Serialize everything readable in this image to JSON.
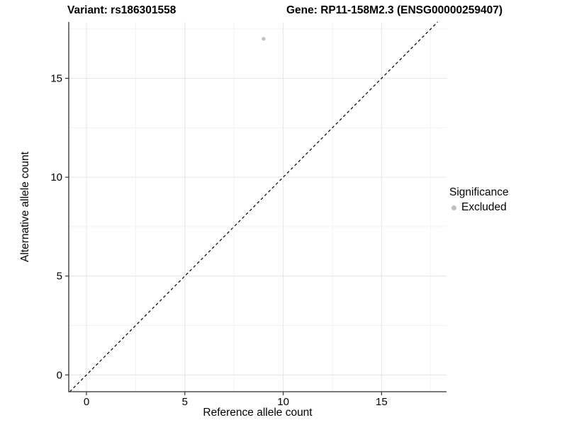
{
  "title": {
    "variant": "Variant: rs186301558",
    "gene": "Gene: RP11-158M2.3 (ENSG00000259407)"
  },
  "chart_data": {
    "type": "scatter",
    "title": "Variant: rs186301558 | Gene: RP11-158M2.3 (ENSG00000259407)",
    "xlabel": "Reference allele count",
    "ylabel": "Alternative allele count",
    "xlim": [
      -0.9,
      18.3
    ],
    "ylim": [
      -0.85,
      17.85
    ],
    "x_ticks": [
      0,
      5,
      10,
      15
    ],
    "y_ticks": [
      0,
      5,
      10,
      15
    ],
    "x_minor_ticks": [
      2.5,
      7.5,
      12.5,
      17.5
    ],
    "y_minor_ticks": [
      2.5,
      7.5,
      12.5,
      17.5
    ],
    "grid": true,
    "series": [
      {
        "name": "Excluded",
        "color": "#c2c2c2",
        "points": [
          {
            "x": 9,
            "y": 17
          }
        ]
      }
    ],
    "reference_line": {
      "type": "identity",
      "slope": 1,
      "intercept": 0,
      "style": "dashed",
      "color": "#000000"
    },
    "legend": {
      "title": "Significance",
      "position": "right",
      "items": [
        {
          "label": "Excluded",
          "color": "#bebebe"
        }
      ]
    }
  },
  "colors": {
    "grid_major": "#e6e6e6",
    "grid_minor": "#f3f3f3",
    "axis_line": "#2f2f2f",
    "tick_mark": "#333333",
    "tick_label": "#000000",
    "point": "#c2c2c2",
    "legend_swatch": "#bebebe"
  }
}
